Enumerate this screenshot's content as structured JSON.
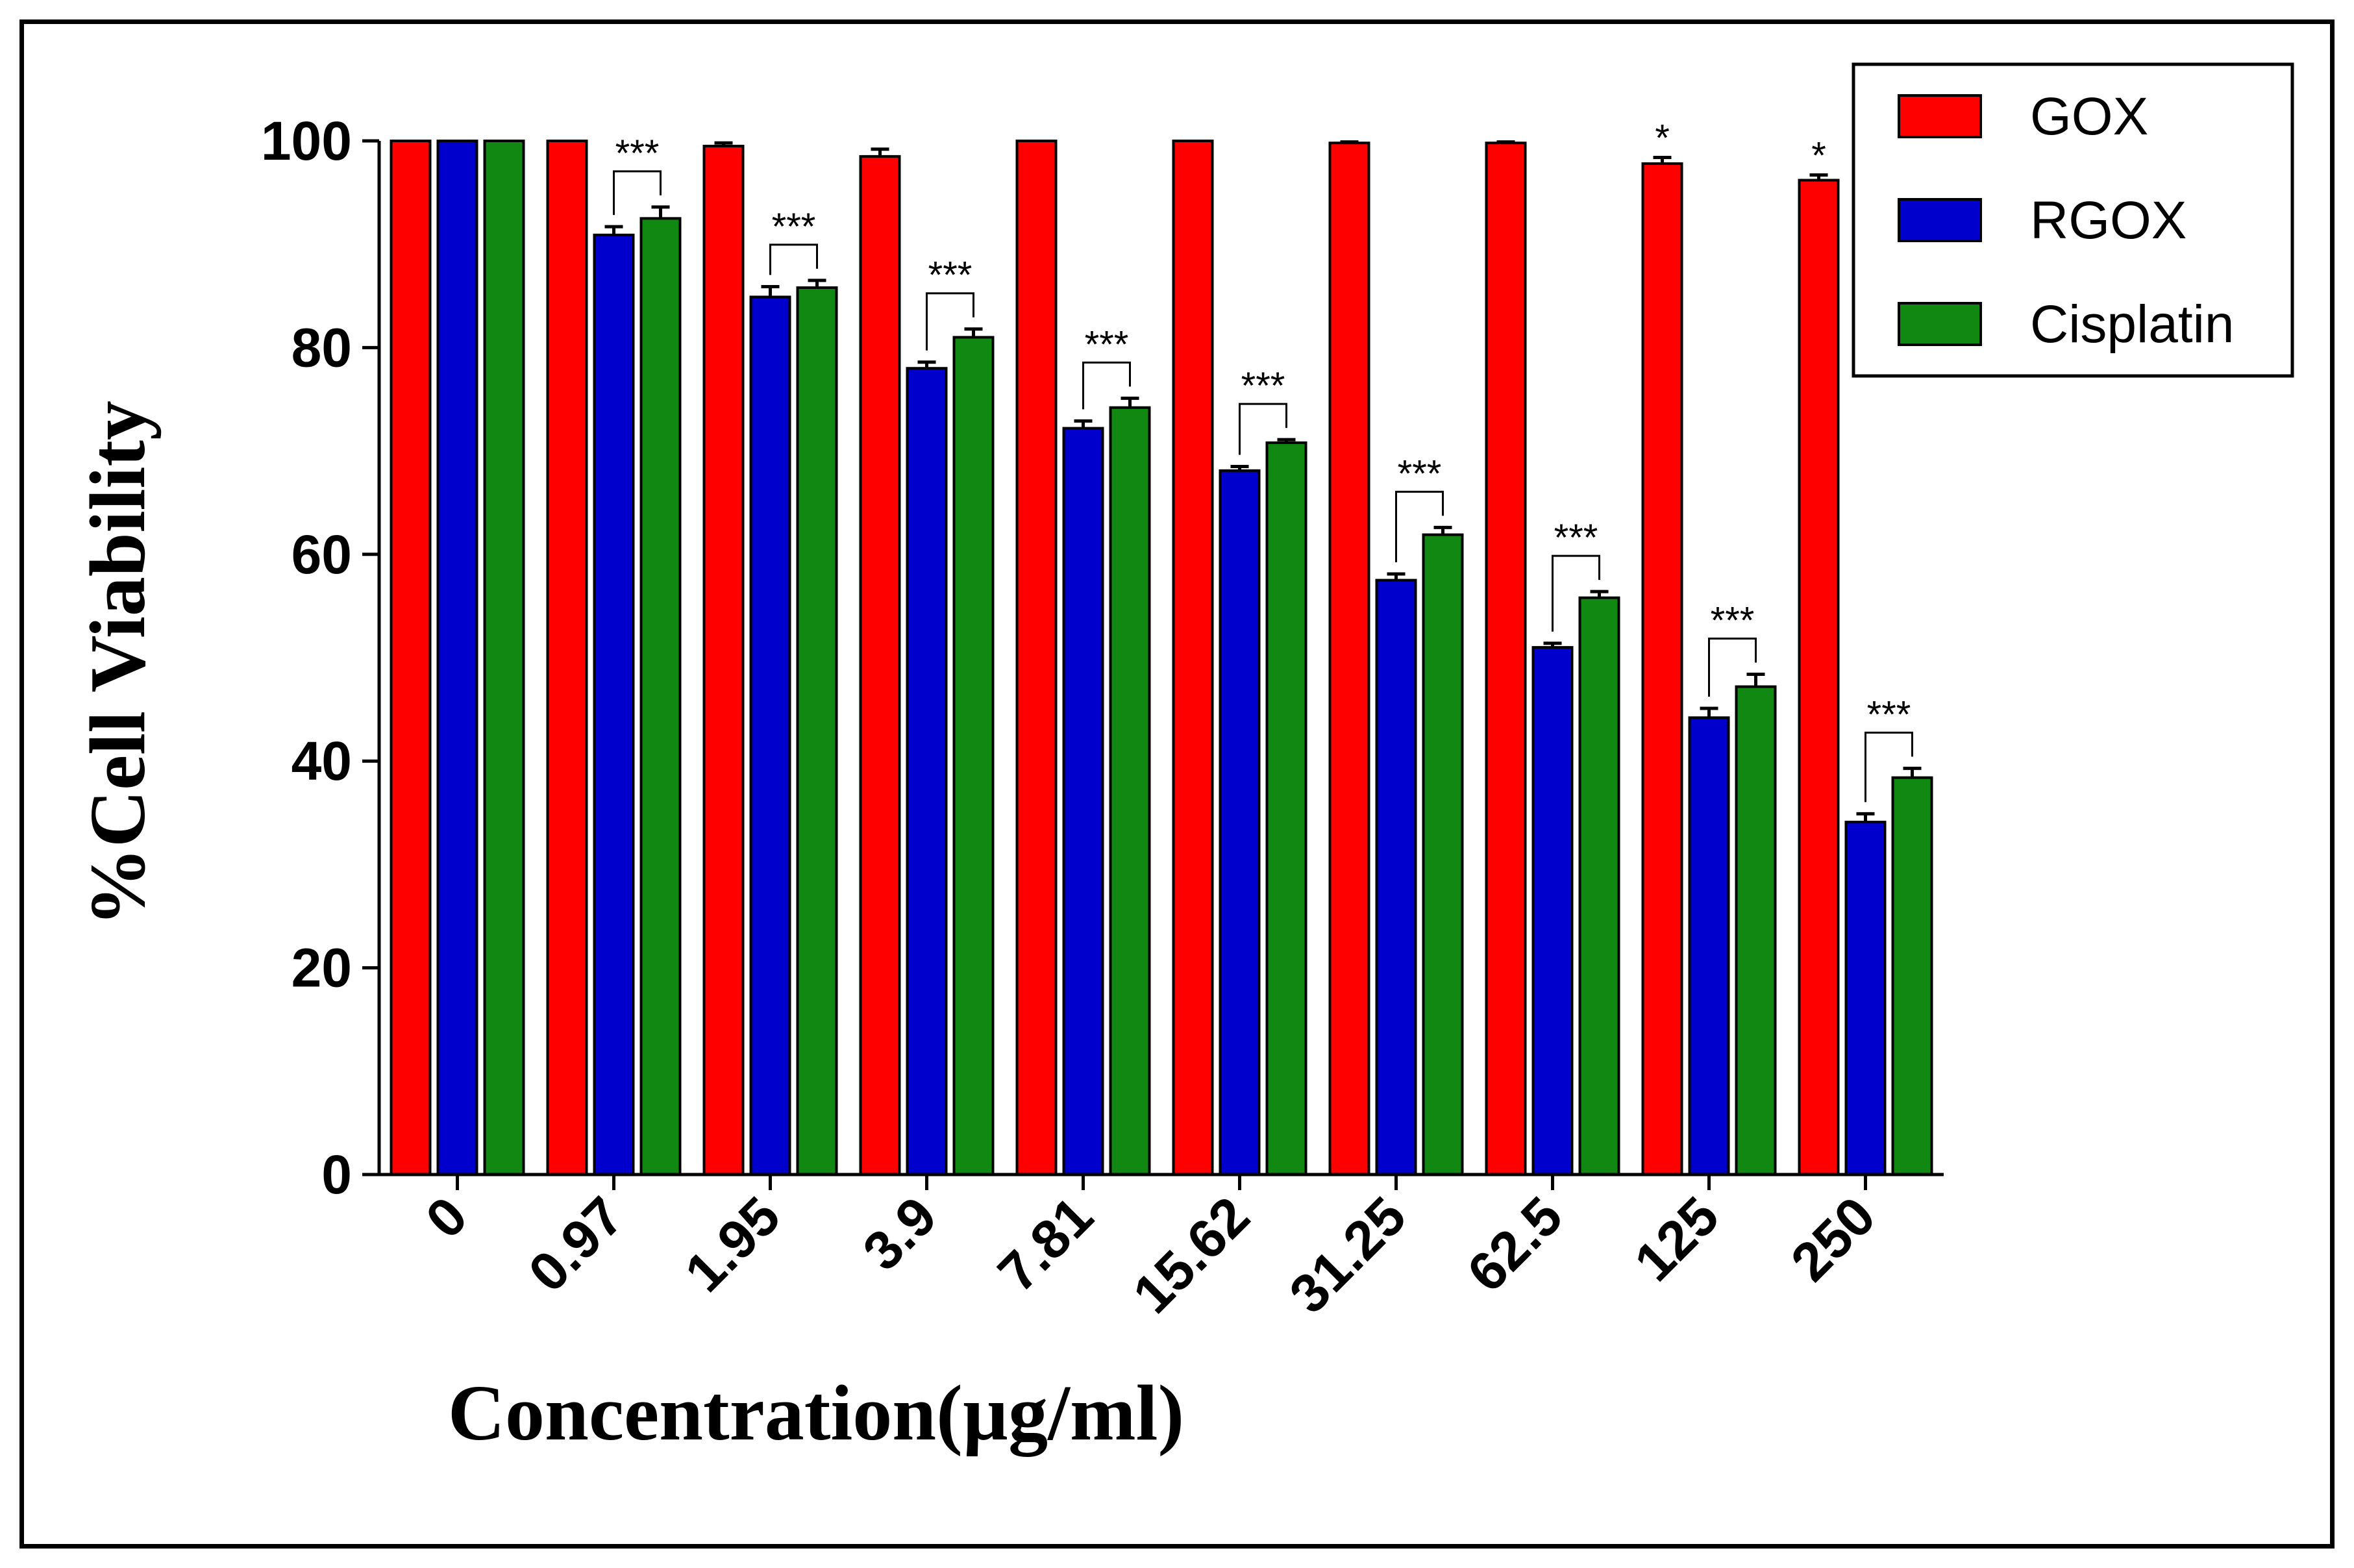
{
  "chart_data": {
    "type": "bar",
    "title": "",
    "xlabel": "Concentration(µg/ml)",
    "ylabel": "%Cell Viability",
    "ylim": [
      0,
      100
    ],
    "yticks": [
      0,
      20,
      40,
      60,
      80,
      100
    ],
    "categories": [
      "0",
      "0.97",
      "1.95",
      "3.9",
      "7.81",
      "15.62",
      "31.25",
      "62.5",
      "125",
      "250"
    ],
    "series": [
      {
        "name": "GOX",
        "color": "#ff0000",
        "values": [
          100,
          100,
          99.5,
          98.5,
          100,
          100,
          99.8,
          99.8,
          97.8,
          96.2
        ],
        "errors": [
          0,
          0,
          0.3,
          0.7,
          0,
          0,
          0.1,
          0.1,
          0.6,
          0.5
        ]
      },
      {
        "name": "RGOX",
        "color": "#0000cc",
        "values": [
          100,
          90.9,
          84.9,
          78.0,
          72.2,
          68.1,
          57.5,
          51.0,
          44.2,
          34.1
        ],
        "errors": [
          0,
          0.8,
          1.0,
          0.6,
          0.7,
          0.4,
          0.6,
          0.4,
          0.9,
          0.8
        ]
      },
      {
        "name": "Cisplatin",
        "color": "#118811",
        "values": [
          100,
          92.5,
          85.8,
          81.0,
          74.2,
          70.8,
          61.9,
          55.8,
          47.2,
          38.4
        ],
        "errors": [
          0,
          1.1,
          0.7,
          0.8,
          0.9,
          0.3,
          0.7,
          0.6,
          1.2,
          0.9
        ]
      }
    ],
    "annotations": [
      {
        "category": "0.97",
        "text": "***",
        "type": "bracket"
      },
      {
        "category": "1.95",
        "text": "***",
        "type": "bracket"
      },
      {
        "category": "3.9",
        "text": "***",
        "type": "bracket"
      },
      {
        "category": "7.81",
        "text": "***",
        "type": "bracket"
      },
      {
        "category": "15.62",
        "text": "***",
        "type": "bracket"
      },
      {
        "category": "31.25",
        "text": "***",
        "type": "bracket"
      },
      {
        "category": "62.5",
        "text": "***",
        "type": "bracket"
      },
      {
        "category": "125",
        "text": "***",
        "type": "bracket"
      },
      {
        "category": "250",
        "text": "***",
        "type": "bracket"
      },
      {
        "category": "125",
        "text": "*",
        "type": "single",
        "series": "GOX"
      },
      {
        "category": "250",
        "text": "*",
        "type": "single",
        "series": "GOX"
      }
    ],
    "legend": {
      "position": "top-right"
    }
  }
}
